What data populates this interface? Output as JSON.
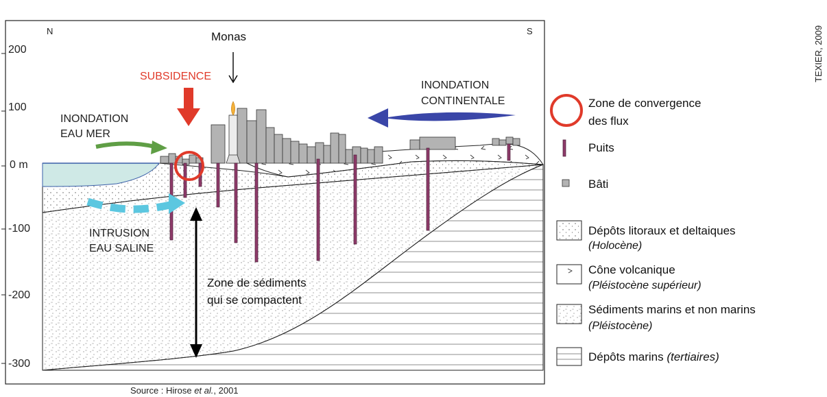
{
  "axis": {
    "ticks": [
      "200",
      "100",
      "0 m",
      "-100",
      "-200",
      "-300"
    ],
    "north": "N",
    "south": "S"
  },
  "labels": {
    "monas": "Monas",
    "subsidence": "SUBSIDENCE",
    "inondation_mer_1": "INONDATION",
    "inondation_mer_2": "EAU MER",
    "inondation_cont_1": "INONDATION",
    "inondation_cont_2": "CONTINENTALE",
    "intrusion_1": "INTRUSION",
    "intrusion_2": "EAU SALINE",
    "zone_1": "Zone de sédiments",
    "zone_2": "qui se compactent"
  },
  "credit": "TEXIER, 2009",
  "source": {
    "prefix": "Source : Hirose ",
    "italic": "et al.",
    "suffix": ", 2001"
  },
  "legend": {
    "convergence_1": "Zone de convergence",
    "convergence_2": "des flux",
    "puits": "Puits",
    "bati": "Bâti",
    "litoraux": "Dépôts litoraux et deltaiques",
    "litoraux_age": "(Holocène)",
    "cone": "Cône volcanique",
    "cone_age": "(Pléistocène supérieur)",
    "sediments": "Sédiments marins et non marins",
    "sediments_age": "(Pléistocène)",
    "marins": "Dépôts marins ",
    "marins_age": "(tertiaires)"
  },
  "colors": {
    "subsidence": "#e03a2a",
    "sea": "#cfe9e6",
    "sea_arrow": "#5f9e45",
    "continental_arrow": "#3a46a8",
    "intrusion": "#5cc7e0",
    "well": "#8e3b6a",
    "building": "#b3b3b3"
  }
}
